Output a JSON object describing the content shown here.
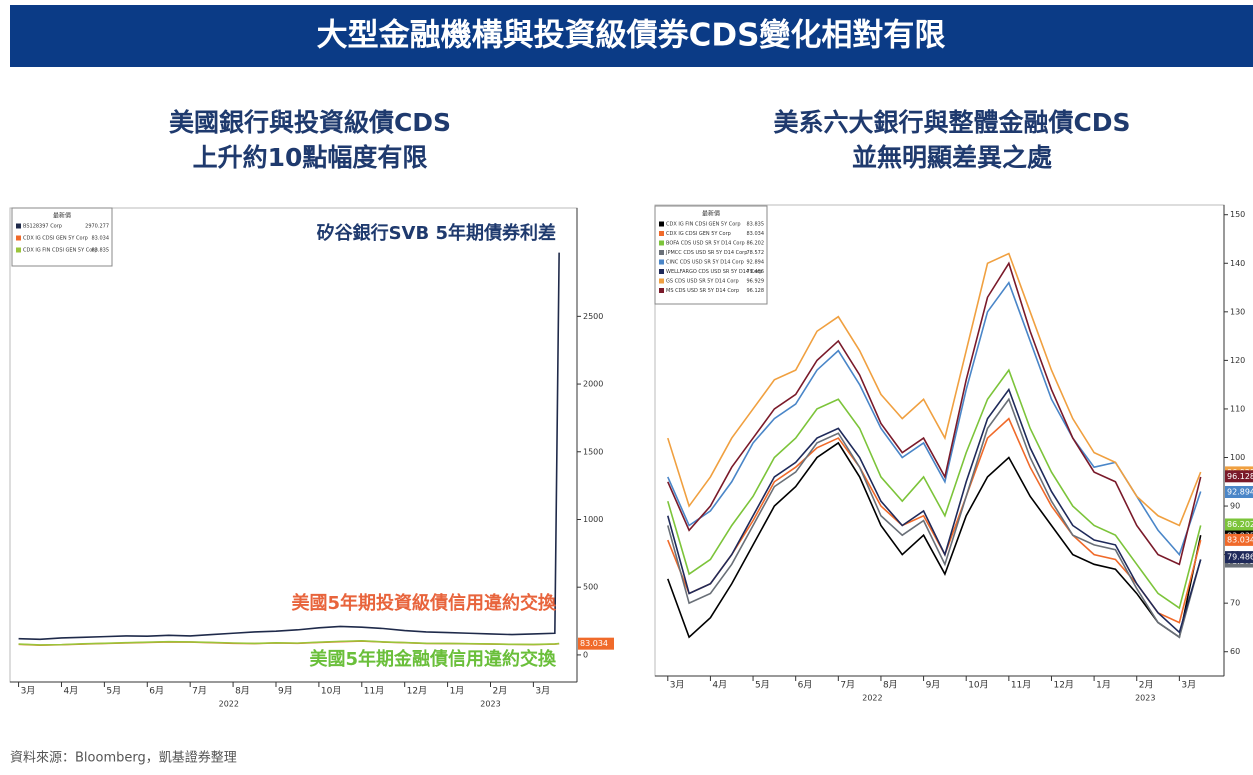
{
  "title": "大型金融機構與投資級債券CDS變化相對有限",
  "source": "資料來源：Bloomberg，凱基證券整理",
  "chart_data": [
    {
      "type": "line",
      "title": [
        "美國銀行與投資級債CDS",
        "上升約10點幅度有限"
      ],
      "legend_title": "最新價",
      "annotations": [
        {
          "text": "矽谷銀行SVB 5年期債券利差",
          "color": "#1f3a6e"
        },
        {
          "text": "美國5年期投資級債信用違約交換",
          "color": "#e8643c"
        },
        {
          "text": "美國5年期金融債信用違約交換",
          "color": "#6abf3a"
        }
      ],
      "x": [
        0,
        0.5,
        1,
        1.5,
        2,
        2.5,
        3,
        3.5,
        4,
        4.5,
        5,
        5.5,
        6,
        6.5,
        7,
        7.5,
        8,
        8.5,
        9,
        9.5,
        10,
        10.5,
        11,
        11.5,
        12,
        12.5,
        12.6
      ],
      "series": [
        {
          "name": "BS128397 Corp",
          "color": "#1f2a4a",
          "last_value": 2970.277,
          "values": [
            120,
            115,
            125,
            130,
            135,
            140,
            138,
            145,
            140,
            150,
            160,
            170,
            175,
            185,
            200,
            210,
            205,
            195,
            180,
            170,
            165,
            160,
            155,
            150,
            155,
            160,
            2970.277
          ]
        },
        {
          "name": "CDX IG CDSI GEN 5Y Corp",
          "color": "#f06a2a",
          "last_value": 83.034,
          "values": [
            78,
            72,
            75,
            80,
            85,
            88,
            92,
            96,
            95,
            90,
            86,
            84,
            88,
            86,
            92,
            98,
            102,
            95,
            90,
            85,
            84,
            82,
            80,
            78,
            76,
            80,
            83.034
          ]
        },
        {
          "name": "CDX IG FIN CDSI GEN 5Y Corp",
          "color": "#9ac43a",
          "last_value": 83.835,
          "values": [
            80,
            74,
            76,
            82,
            86,
            90,
            94,
            98,
            96,
            92,
            88,
            85,
            89,
            87,
            94,
            100,
            104,
            96,
            91,
            86,
            85,
            83,
            81,
            78,
            77,
            81,
            83.835
          ]
        }
      ],
      "xlim": [
        -0.2,
        12.9
      ],
      "xticks": [
        {
          "value": 0,
          "label": "3月"
        },
        {
          "value": 1,
          "label": "4月"
        },
        {
          "value": 2,
          "label": "5月"
        },
        {
          "value": 3,
          "label": "6月"
        },
        {
          "value": 4,
          "label": "7月"
        },
        {
          "value": 5,
          "label": "8月"
        },
        {
          "value": 6,
          "label": "9月"
        },
        {
          "value": 7,
          "label": "10月"
        },
        {
          "value": 8,
          "label": "11月"
        },
        {
          "value": 9,
          "label": "12月"
        },
        {
          "value": 10,
          "label": "1月"
        },
        {
          "value": 11,
          "label": "2月"
        },
        {
          "value": 12,
          "label": "3月"
        }
      ],
      "year_ticks": [
        {
          "value": 4.9,
          "label": "2022"
        },
        {
          "value": 11.0,
          "label": "2023"
        }
      ],
      "ylim": [
        -200,
        3300
      ],
      "yticks": [
        0,
        500,
        1000,
        1500,
        2000,
        2500
      ]
    },
    {
      "type": "line",
      "title": [
        "美系六大銀行與整體金融債CDS",
        "並無明顯差異之處"
      ],
      "legend_title": "最新價",
      "x": [
        0,
        0.5,
        1,
        1.5,
        2,
        2.5,
        3,
        3.5,
        4,
        4.5,
        5,
        5.5,
        6,
        6.5,
        7,
        7.5,
        8,
        8.5,
        9,
        9.5,
        10,
        10.5,
        11,
        11.5,
        12,
        12.5
      ],
      "series": [
        {
          "name": "CDX IG FIN CDSI GEN 5Y Corp",
          "color": "#000000",
          "last_value": 83.835,
          "values": [
            75,
            63,
            67,
            74,
            82,
            90,
            94,
            100,
            103,
            96,
            86,
            80,
            84,
            76,
            88,
            96,
            100,
            92,
            86,
            80,
            78,
            77,
            72,
            66,
            63,
            84
          ]
        },
        {
          "name": "CDX IG CDSI GEN 5Y Corp",
          "color": "#f06a2a",
          "last_value": 83.034,
          "values": [
            83,
            72,
            74,
            80,
            87,
            95,
            98,
            102,
            104,
            98,
            90,
            86,
            88,
            80,
            92,
            104,
            108,
            98,
            90,
            84,
            80,
            79,
            74,
            68,
            66,
            83
          ]
        },
        {
          "name": "BOFA CDS USD SR 5Y D14 Corp",
          "color": "#7cc43a",
          "last_value": 86.202,
          "values": [
            91,
            76,
            79,
            86,
            92,
            100,
            104,
            110,
            112,
            106,
            96,
            91,
            96,
            88,
            101,
            112,
            118,
            106,
            97,
            90,
            86,
            84,
            78,
            72,
            69,
            86
          ]
        },
        {
          "name": "JPMCC CDS USD SR 5Y D14 Corp",
          "color": "#6a7078",
          "last_value": 78.572,
          "values": [
            86,
            70,
            72,
            78,
            86,
            94,
            97,
            103,
            105,
            98,
            88,
            84,
            87,
            78,
            92,
            106,
            112,
            100,
            91,
            84,
            82,
            81,
            73,
            66,
            63,
            79
          ]
        },
        {
          "name": "CINC CDS USD SR 5Y D14 Corp",
          "color": "#4a86c8",
          "last_value": 92.894,
          "values": [
            96,
            86,
            89,
            95,
            103,
            108,
            111,
            118,
            122,
            115,
            106,
            100,
            103,
            95,
            114,
            130,
            136,
            124,
            112,
            104,
            98,
            99,
            92,
            85,
            80,
            93
          ]
        },
        {
          "name": "WELLFARGO CDS USD SR 5Y D14 Corp",
          "color": "#1f2a5a",
          "last_value": 79.486,
          "values": [
            88,
            72,
            74,
            80,
            88,
            96,
            99,
            104,
            106,
            100,
            91,
            86,
            89,
            80,
            95,
            108,
            114,
            102,
            93,
            86,
            83,
            82,
            74,
            68,
            64,
            79
          ]
        },
        {
          "name": "GS CDS USD SR 5Y D14 Corp",
          "color": "#f0a040",
          "last_value": 96.929,
          "values": [
            104,
            90,
            96,
            104,
            110,
            116,
            118,
            126,
            129,
            122,
            113,
            108,
            112,
            104,
            122,
            140,
            142,
            130,
            118,
            108,
            101,
            99,
            92,
            88,
            86,
            97
          ]
        },
        {
          "name": "MS CDS USD SR 5Y D14 Corp",
          "color": "#7a1a2a",
          "last_value": 96.128,
          "values": [
            95,
            85,
            90,
            98,
            104,
            110,
            113,
            120,
            124,
            117,
            107,
            101,
            104,
            96,
            116,
            133,
            140,
            126,
            114,
            104,
            97,
            95,
            86,
            80,
            78,
            96
          ]
        }
      ],
      "xlim": [
        -0.3,
        13.0
      ],
      "xticks": [
        {
          "value": 0,
          "label": "3月"
        },
        {
          "value": 1,
          "label": "4月"
        },
        {
          "value": 2,
          "label": "5月"
        },
        {
          "value": 3,
          "label": "6月"
        },
        {
          "value": 4,
          "label": "7月"
        },
        {
          "value": 5,
          "label": "8月"
        },
        {
          "value": 6,
          "label": "9月"
        },
        {
          "value": 7,
          "label": "10月"
        },
        {
          "value": 8,
          "label": "11月"
        },
        {
          "value": 9,
          "label": "12月"
        },
        {
          "value": 10,
          "label": "1月"
        },
        {
          "value": 11,
          "label": "2月"
        },
        {
          "value": 12,
          "label": "3月"
        }
      ],
      "year_ticks": [
        {
          "value": 4.8,
          "label": "2022"
        },
        {
          "value": 11.2,
          "label": "2023"
        }
      ],
      "ylim": [
        55,
        152
      ],
      "yticks": [
        60,
        70,
        80,
        90,
        100,
        110,
        120,
        130,
        140,
        150
      ]
    }
  ]
}
